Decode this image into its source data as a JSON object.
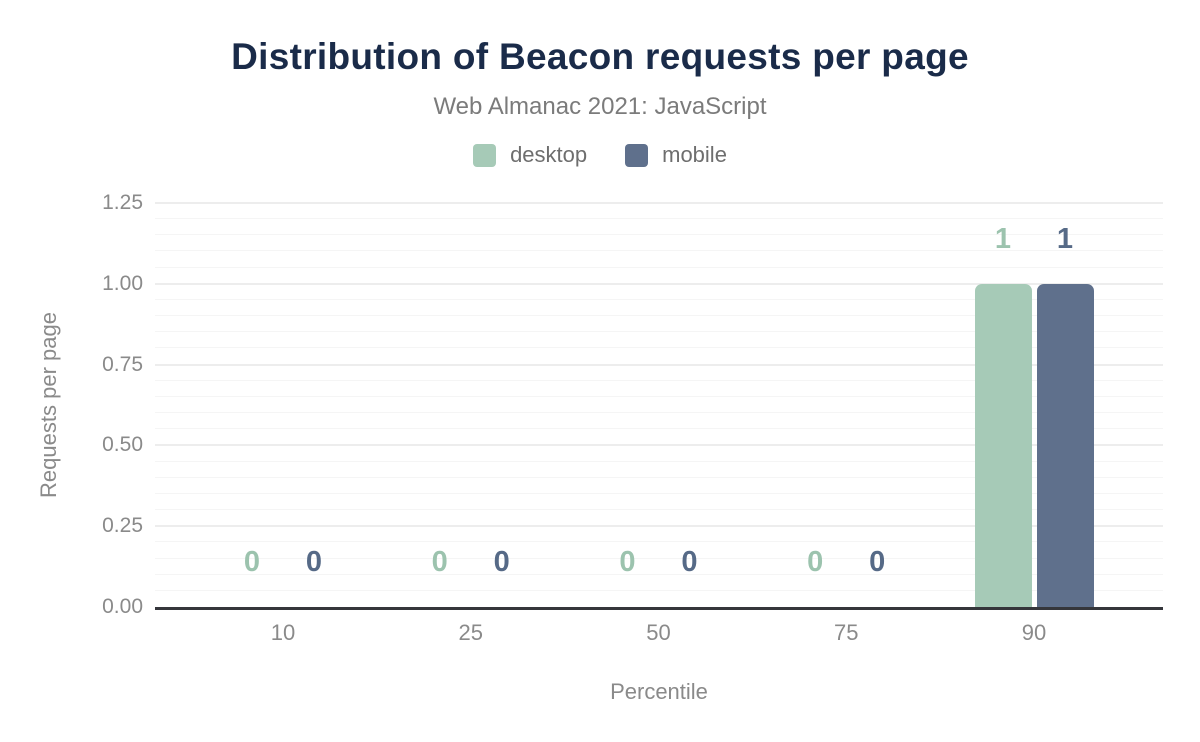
{
  "chart_data": {
    "type": "bar",
    "title": "Distribution of Beacon requests per page",
    "subtitle": "Web Almanac 2021: JavaScript",
    "xlabel": "Percentile",
    "ylabel": "Requests per page",
    "categories": [
      "10",
      "25",
      "50",
      "75",
      "90"
    ],
    "series": [
      {
        "name": "desktop",
        "color": "#a6cab7",
        "label_color": "#9cc3ae",
        "values": [
          0,
          0,
          0,
          0,
          1
        ]
      },
      {
        "name": "mobile",
        "color": "#5f708c",
        "label_color": "#566a87",
        "values": [
          0,
          0,
          0,
          0,
          1
        ]
      }
    ],
    "ylim": [
      0,
      1.25
    ],
    "yticks": [
      0,
      0.25,
      0.5,
      0.75,
      1,
      1.25
    ],
    "ytick_labels": [
      "0.00",
      "0.25",
      "0.50",
      "0.75",
      "1.00",
      "1.25"
    ],
    "minor_tick_step": 0.05,
    "grid": true,
    "legend_position": "top",
    "colors": {
      "title": "#1a2b49",
      "subtitle": "#7b7b7b",
      "axis_text": "#8a8a8a",
      "axis_line": "#35363b",
      "grid_major": "#ededed",
      "grid_minor": "#f5f5f5"
    }
  }
}
